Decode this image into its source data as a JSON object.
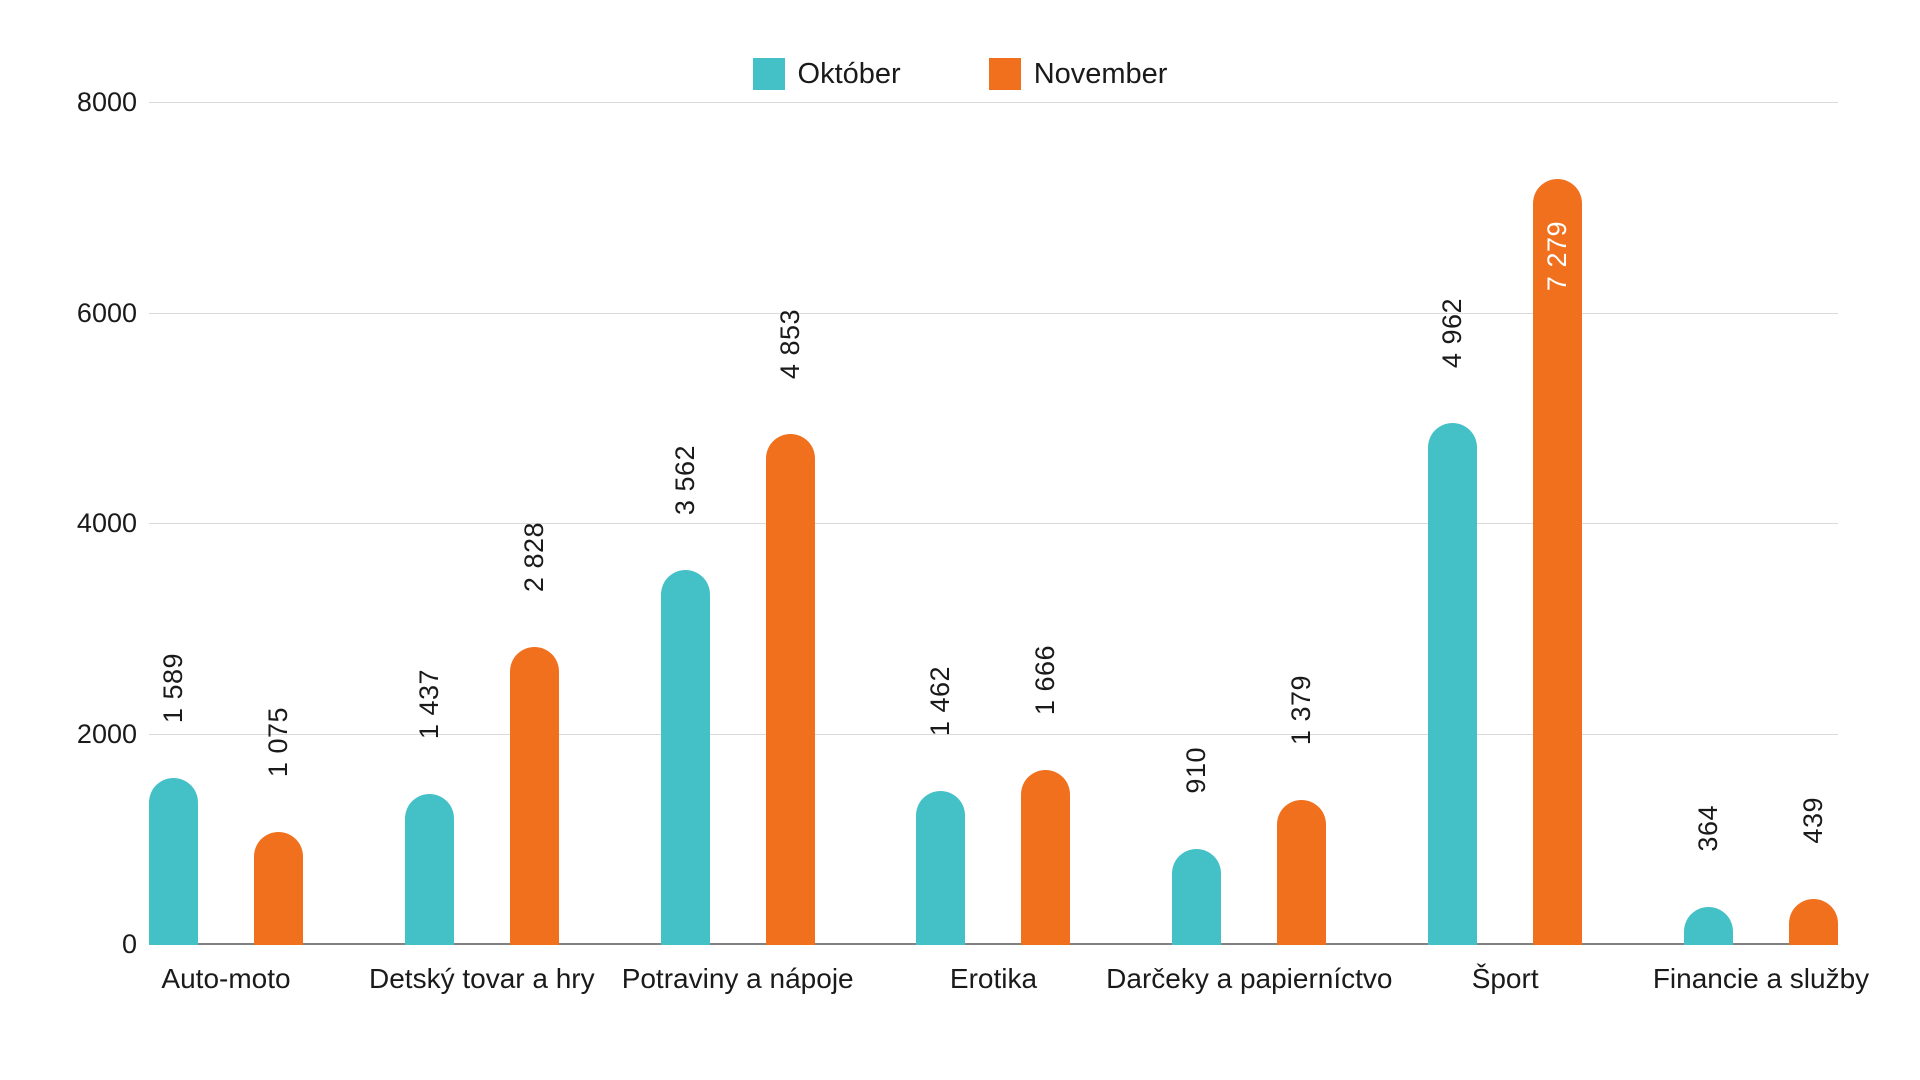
{
  "chart_data": {
    "type": "bar",
    "title": "",
    "xlabel": "",
    "ylabel": "",
    "categories": [
      "Auto-moto",
      "Detský tovar a hry",
      "Potraviny a nápoje",
      "Erotika",
      "Darčeky a papierníctvo",
      "Šport",
      "Financie a služby"
    ],
    "series": [
      {
        "name": "Október",
        "color": "#44C1C7",
        "values": [
          1589,
          1437,
          3562,
          1462,
          910,
          4962,
          364
        ],
        "labels": [
          "1 589",
          "1 437",
          "3 562",
          "1 462",
          "910",
          "4 962",
          "364"
        ],
        "label_positions": [
          "above",
          "above",
          "above",
          "above",
          "above",
          "above",
          "above"
        ]
      },
      {
        "name": "November",
        "color": "#F0701E",
        "values": [
          1075,
          2828,
          4853,
          1666,
          1379,
          7279,
          439
        ],
        "labels": [
          "1 075",
          "2 828",
          "4 853",
          "1 666",
          "1 379",
          "7 279",
          "439"
        ],
        "label_positions": [
          "above",
          "above",
          "above",
          "above",
          "above",
          "inside",
          "above"
        ]
      }
    ],
    "ylim": [
      0,
      8000
    ],
    "yticks": [
      0,
      2000,
      4000,
      6000,
      8000
    ],
    "grid": true,
    "legend_position": "top-center",
    "value_label_rotation": -90,
    "bar_cap": "rounded-top",
    "colors": {
      "grid": "#dadada",
      "axis_line": "#818181",
      "text": "#1a1a1a",
      "inside_label_text": "#ffffff",
      "background": "#ffffff"
    }
  }
}
